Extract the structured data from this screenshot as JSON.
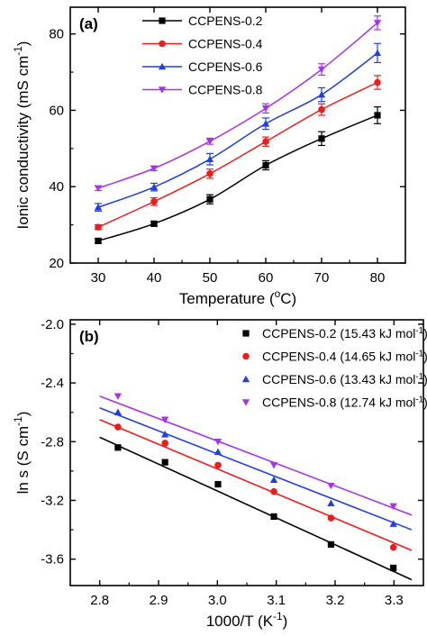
{
  "chart_data": [
    {
      "type": "line",
      "panel_label": "(a)",
      "xlabel": "Temperature (",
      "xlabel_sup": "o",
      "xlabel_end": "C)",
      "ylabel": "Ionic conductivity (mS cm",
      "ylabel_sup": "-1",
      "ylabel_end": ")",
      "xlim": [
        25,
        85
      ],
      "ylim": [
        20,
        87
      ],
      "xticks": [
        30,
        40,
        50,
        60,
        70,
        80
      ],
      "yticks": [
        20,
        40,
        60,
        80
      ],
      "grid": false,
      "legend_position": "top-left",
      "x": [
        30,
        40,
        50,
        60,
        70,
        80
      ],
      "series": [
        {
          "name": "CCPENS-0.2",
          "color": "#000000",
          "marker": "square",
          "values": [
            25.8,
            30.3,
            36.7,
            45.6,
            52.6,
            58.7
          ],
          "errors": [
            0.6,
            0.6,
            1.2,
            1.2,
            1.8,
            2.2
          ]
        },
        {
          "name": "CCPENS-0.4",
          "color": "#ee1c1c",
          "marker": "circle",
          "values": [
            29.4,
            36.1,
            43.4,
            51.8,
            60.2,
            67.3
          ],
          "errors": [
            0.6,
            1.0,
            1.2,
            1.2,
            1.5,
            1.8
          ]
        },
        {
          "name": "CCPENS-0.6",
          "color": "#1f3fe0",
          "marker": "triangle-up",
          "values": [
            34.6,
            39.9,
            47.2,
            56.5,
            64.1,
            75.0
          ],
          "errors": [
            1.0,
            1.0,
            1.5,
            1.5,
            1.8,
            2.5
          ]
        },
        {
          "name": "CCPENS-0.8",
          "color": "#a633e8",
          "marker": "triangle-down",
          "values": [
            39.6,
            44.8,
            51.9,
            60.5,
            70.7,
            82.9
          ],
          "errors": [
            0.6,
            0.6,
            0.8,
            1.2,
            1.5,
            1.8
          ]
        }
      ]
    },
    {
      "type": "scatter",
      "panel_label": "(b)",
      "xlabel": "1000/T (K",
      "xlabel_sup": "-1",
      "xlabel_end": ")",
      "ylabel": "ln s (S cm",
      "ylabel_sup": "-1",
      "ylabel_end": ")",
      "xlim": [
        2.75,
        3.35
      ],
      "ylim": [
        -3.78,
        -1.97
      ],
      "xticks": [
        "2.8",
        "2.9",
        "3.0",
        "3.1",
        "3.2",
        "3.3"
      ],
      "yticks": [
        "-2.0",
        "-2.4",
        "-2.8",
        "-3.2",
        "-3.6"
      ],
      "grid": false,
      "legend_position": "top-right",
      "x": [
        2.831,
        2.911,
        3.001,
        3.096,
        3.193,
        3.299
      ],
      "fit_x_range": [
        2.8,
        3.33
      ],
      "series": [
        {
          "name": "CCPENS-0.2",
          "activation": "15.43 kJ mol",
          "unit_sup": "-1",
          "unit_end": ")",
          "color": "#000000",
          "marker": "square",
          "values": [
            -2.84,
            -2.94,
            -3.09,
            -3.31,
            -3.5,
            -3.66
          ],
          "fit": [
            -2.77,
            -3.74
          ]
        },
        {
          "name": "CCPENS-0.4",
          "activation": "14.65 kJ mol",
          "unit_sup": "-1",
          "unit_end": ")",
          "color": "#ee1c1c",
          "marker": "circle",
          "values": [
            -2.7,
            -2.81,
            -2.96,
            -3.14,
            -3.32,
            -3.52
          ],
          "fit": [
            -2.65,
            -3.54
          ]
        },
        {
          "name": "CCPENS-0.6",
          "activation": "13.43 kJ mol",
          "unit_sup": "-1",
          "unit_end": ")",
          "color": "#1f3fe0",
          "marker": "triangle-up",
          "values": [
            -2.6,
            -2.75,
            -2.87,
            -3.06,
            -3.22,
            -3.36
          ],
          "fit": [
            -2.57,
            -3.4
          ]
        },
        {
          "name": "CCPENS-0.8",
          "activation": "12.74 kJ mol",
          "unit_sup": "-1",
          "unit_end": ")",
          "color": "#a633e8",
          "marker": "triangle-down",
          "values": [
            -2.49,
            -2.65,
            -2.8,
            -2.96,
            -3.1,
            -3.24
          ],
          "fit": [
            -2.49,
            -3.3
          ]
        }
      ]
    }
  ]
}
